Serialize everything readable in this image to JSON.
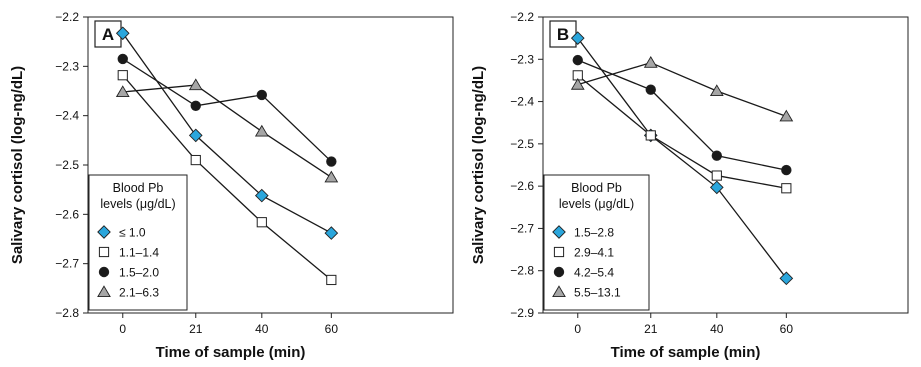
{
  "chart_data": [
    {
      "type": "line",
      "panel_label": "A",
      "xlabel": "Time of sample (min)",
      "ylabel": "Salivary cortisol (log-ng/dL)",
      "x": [
        0,
        21,
        40,
        60
      ],
      "xlim": [
        -10,
        95
      ],
      "ylim": [
        -2.8,
        -2.2
      ],
      "yticks": [
        -2.2,
        -2.3,
        -2.4,
        -2.5,
        -2.6,
        -2.7,
        -2.8
      ],
      "yticklabels": [
        "−2.2",
        "−2.3",
        "−2.4",
        "−2.5",
        "−2.6",
        "−2.7",
        "−2.8"
      ],
      "xticklabels": [
        "0",
        "21",
        "40",
        "60"
      ],
      "grid": false,
      "legend": {
        "placement": "bottom-left",
        "title_lines": [
          "Blood Pb",
          "levels (μg/dL)"
        ]
      },
      "series": [
        {
          "name": "≤ 1.0",
          "marker": "diamond",
          "color": "#2aa6dc",
          "values": [
            -2.233,
            -2.44,
            -2.562,
            -2.638
          ]
        },
        {
          "name": "1.1–1.4",
          "marker": "square",
          "color": "#ffffff",
          "values": [
            -2.318,
            -2.49,
            -2.616,
            -2.733
          ]
        },
        {
          "name": "1.5–2.0",
          "marker": "circle",
          "color": "#1a1a1a",
          "values": [
            -2.285,
            -2.38,
            -2.358,
            -2.493
          ]
        },
        {
          "name": "2.1–6.3",
          "marker": "triangle",
          "color": "#a6a6a6",
          "values": [
            -2.352,
            -2.338,
            -2.432,
            -2.525
          ]
        }
      ]
    },
    {
      "type": "line",
      "panel_label": "B",
      "xlabel": "Time of sample (min)",
      "ylabel": "Salivary cortisol (log-ng/dL)",
      "x": [
        0,
        21,
        40,
        60
      ],
      "xlim": [
        -10,
        95
      ],
      "ylim": [
        -2.9,
        -2.2
      ],
      "yticks": [
        -2.2,
        -2.3,
        -2.4,
        -2.5,
        -2.6,
        -2.7,
        -2.8,
        -2.9
      ],
      "yticklabels": [
        "−2.2",
        "−2.3",
        "−2.4",
        "−2.5",
        "−2.6",
        "−2.7",
        "−2.8",
        "−2.9"
      ],
      "xticklabels": [
        "0",
        "21",
        "40",
        "60"
      ],
      "grid": false,
      "legend": {
        "placement": "bottom-left",
        "title_lines": [
          "Blood Pb",
          "levels (μg/dL)"
        ]
      },
      "series": [
        {
          "name": "1.5–2.8",
          "marker": "diamond",
          "color": "#2aa6dc",
          "values": [
            -2.25,
            -2.48,
            -2.603,
            -2.818
          ]
        },
        {
          "name": "2.9–4.1",
          "marker": "square",
          "color": "#ffffff",
          "values": [
            -2.338,
            -2.48,
            -2.575,
            -2.605
          ]
        },
        {
          "name": "4.2–5.4",
          "marker": "circle",
          "color": "#1a1a1a",
          "values": [
            -2.302,
            -2.372,
            -2.528,
            -2.562
          ]
        },
        {
          "name": "5.5–13.1",
          "marker": "triangle",
          "color": "#a6a6a6",
          "values": [
            -2.36,
            -2.308,
            -2.375,
            -2.435
          ]
        }
      ]
    }
  ]
}
